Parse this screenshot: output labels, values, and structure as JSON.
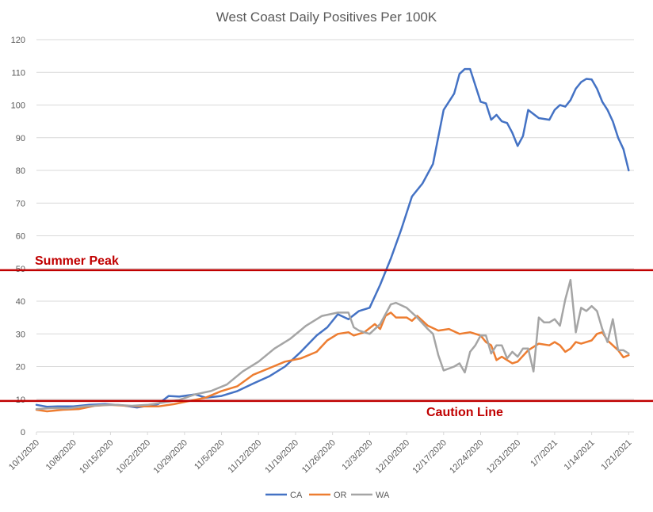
{
  "chart_data": {
    "type": "line",
    "title": "West Coast Daily Positives Per 100K",
    "xlabel": "",
    "ylabel": "",
    "ylim": [
      0,
      120
    ],
    "yticks": [
      0,
      10,
      20,
      30,
      40,
      50,
      60,
      70,
      80,
      90,
      100,
      110,
      120
    ],
    "grid": true,
    "legend_position": "bottom",
    "x_start": "10/1/2020",
    "x_end": "1/22/2021",
    "x_tick_labels": [
      "10/1/2020",
      "10/8/2020",
      "10/15/2020",
      "10/22/2020",
      "10/29/2020",
      "11/5/2020",
      "11/12/2020",
      "11/19/2020",
      "11/26/2020",
      "12/3/2020",
      "12/10/2020",
      "12/17/2020",
      "12/24/2020",
      "12/31/2020",
      "1/7/2021",
      "1/14/2021",
      "1/21/2021"
    ],
    "reference_lines": [
      {
        "label": "Summer Peak",
        "value": 49.5,
        "color": "#c00000"
      },
      {
        "label": "Caution Line",
        "value": 9.5,
        "color": "#c00000"
      }
    ],
    "series": [
      {
        "name": "CA",
        "color": "#4472c4",
        "points": [
          [
            "10/1/2020",
            8.3
          ],
          [
            "10/3/2020",
            7.7
          ],
          [
            "10/5/2020",
            7.8
          ],
          [
            "10/8/2020",
            7.8
          ],
          [
            "10/11/2020",
            8.3
          ],
          [
            "10/14/2020",
            8.5
          ],
          [
            "10/17/2020",
            8.2
          ],
          [
            "10/20/2020",
            7.5
          ],
          [
            "10/22/2020",
            8.0
          ],
          [
            "10/24/2020",
            8.5
          ],
          [
            "10/26/2020",
            11.0
          ],
          [
            "10/28/2020",
            10.8
          ],
          [
            "10/31/2020",
            11.5
          ],
          [
            "11/2/2020",
            10.5
          ],
          [
            "11/5/2020",
            11.0
          ],
          [
            "11/8/2020",
            12.5
          ],
          [
            "11/11/2020",
            14.8
          ],
          [
            "11/14/2020",
            17.0
          ],
          [
            "11/17/2020",
            20.0
          ],
          [
            "11/20/2020",
            24.5
          ],
          [
            "11/23/2020",
            29.5
          ],
          [
            "11/25/2020",
            32.0
          ],
          [
            "11/27/2020",
            36.0
          ],
          [
            "11/29/2020",
            34.5
          ],
          [
            "12/1/2020",
            37.0
          ],
          [
            "12/3/2020",
            38.0
          ],
          [
            "12/5/2020",
            45.0
          ],
          [
            "12/7/2020",
            53.0
          ],
          [
            "12/9/2020",
            62.0
          ],
          [
            "12/11/2020",
            72.0
          ],
          [
            "12/13/2020",
            76.0
          ],
          [
            "12/15/2020",
            82.0
          ],
          [
            "12/17/2020",
            98.5
          ],
          [
            "12/19/2020",
            103.5
          ],
          [
            "12/20/2020",
            109.5
          ],
          [
            "12/21/2020",
            111.0
          ],
          [
            "12/22/2020",
            111.0
          ],
          [
            "12/24/2020",
            101.0
          ],
          [
            "12/25/2020",
            100.5
          ],
          [
            "12/26/2020",
            95.5
          ],
          [
            "12/27/2020",
            97.0
          ],
          [
            "12/28/2020",
            95.0
          ],
          [
            "12/29/2020",
            94.5
          ],
          [
            "12/30/2020",
            91.5
          ],
          [
            "12/31/2020",
            87.5
          ],
          [
            "1/1/2021",
            90.5
          ],
          [
            "1/2/2021",
            98.5
          ],
          [
            "1/4/2021",
            96.0
          ],
          [
            "1/6/2021",
            95.5
          ],
          [
            "1/7/2021",
            98.5
          ],
          [
            "1/8/2021",
            100.0
          ],
          [
            "1/9/2021",
            99.5
          ],
          [
            "1/10/2021",
            101.5
          ],
          [
            "1/11/2021",
            105.0
          ],
          [
            "1/12/2021",
            107.0
          ],
          [
            "1/13/2021",
            108.0
          ],
          [
            "1/14/2021",
            107.8
          ],
          [
            "1/15/2021",
            105.0
          ],
          [
            "1/16/2021",
            101.0
          ],
          [
            "1/17/2021",
            98.5
          ],
          [
            "1/18/2021",
            95.0
          ],
          [
            "1/19/2021",
            90.0
          ],
          [
            "1/20/2021",
            86.5
          ],
          [
            "1/21/2021",
            80.0
          ]
        ]
      },
      {
        "name": "OR",
        "color": "#ed7d31",
        "points": [
          [
            "10/1/2020",
            6.8
          ],
          [
            "10/3/2020",
            6.3
          ],
          [
            "10/6/2020",
            6.8
          ],
          [
            "10/9/2020",
            7.0
          ],
          [
            "10/12/2020",
            8.0
          ],
          [
            "10/15/2020",
            8.3
          ],
          [
            "10/18/2020",
            8.0
          ],
          [
            "10/21/2020",
            7.8
          ],
          [
            "10/24/2020",
            7.8
          ],
          [
            "10/27/2020",
            8.5
          ],
          [
            "10/30/2020",
            9.5
          ],
          [
            "11/2/2020",
            10.5
          ],
          [
            "11/5/2020",
            12.5
          ],
          [
            "11/8/2020",
            14.0
          ],
          [
            "11/11/2020",
            17.5
          ],
          [
            "11/14/2020",
            19.5
          ],
          [
            "11/17/2020",
            21.5
          ],
          [
            "11/20/2020",
            22.5
          ],
          [
            "11/23/2020",
            24.5
          ],
          [
            "11/25/2020",
            28.0
          ],
          [
            "11/27/2020",
            30.0
          ],
          [
            "11/29/2020",
            30.5
          ],
          [
            "11/30/2020",
            29.5
          ],
          [
            "12/2/2020",
            30.5
          ],
          [
            "12/4/2020",
            33.0
          ],
          [
            "12/5/2020",
            31.5
          ],
          [
            "12/6/2020",
            35.5
          ],
          [
            "12/7/2020",
            36.5
          ],
          [
            "12/8/2020",
            35.0
          ],
          [
            "12/10/2020",
            35.0
          ],
          [
            "12/11/2020",
            34.0
          ],
          [
            "12/12/2020",
            35.5
          ],
          [
            "12/14/2020",
            32.5
          ],
          [
            "12/16/2020",
            31.0
          ],
          [
            "12/18/2020",
            31.5
          ],
          [
            "12/20/2020",
            30.0
          ],
          [
            "12/22/2020",
            30.5
          ],
          [
            "12/24/2020",
            29.5
          ],
          [
            "12/25/2020",
            27.5
          ],
          [
            "12/26/2020",
            26.5
          ],
          [
            "12/27/2020",
            22.0
          ],
          [
            "12/28/2020",
            23.0
          ],
          [
            "12/30/2020",
            21.0
          ],
          [
            "12/31/2020",
            21.5
          ],
          [
            "1/2/2021",
            25.0
          ],
          [
            "1/4/2021",
            27.0
          ],
          [
            "1/6/2021",
            26.5
          ],
          [
            "1/7/2021",
            27.5
          ],
          [
            "1/8/2021",
            26.5
          ],
          [
            "1/9/2021",
            24.5
          ],
          [
            "1/10/2021",
            25.5
          ],
          [
            "1/11/2021",
            27.5
          ],
          [
            "1/12/2021",
            27.0
          ],
          [
            "1/13/2021",
            27.5
          ],
          [
            "1/14/2021",
            28.0
          ],
          [
            "1/15/2021",
            30.0
          ],
          [
            "1/16/2021",
            30.5
          ],
          [
            "1/17/2021",
            28.0
          ],
          [
            "1/18/2021",
            26.5
          ],
          [
            "1/19/2021",
            25.0
          ],
          [
            "1/20/2021",
            22.8
          ],
          [
            "1/21/2021",
            23.5
          ]
        ]
      },
      {
        "name": "WA",
        "color": "#a5a5a5",
        "points": [
          [
            "10/1/2020",
            7.0
          ],
          [
            "10/4/2020",
            7.3
          ],
          [
            "10/7/2020",
            7.2
          ],
          [
            "10/10/2020",
            7.8
          ],
          [
            "10/13/2020",
            8.2
          ],
          [
            "10/16/2020",
            8.3
          ],
          [
            "10/19/2020",
            8.0
          ],
          [
            "10/22/2020",
            8.3
          ],
          [
            "10/25/2020",
            9.0
          ],
          [
            "10/28/2020",
            9.8
          ],
          [
            "10/31/2020",
            11.5
          ],
          [
            "11/3/2020",
            12.5
          ],
          [
            "11/6/2020",
            14.5
          ],
          [
            "11/9/2020",
            18.5
          ],
          [
            "11/12/2020",
            21.5
          ],
          [
            "11/15/2020",
            25.5
          ],
          [
            "11/18/2020",
            28.5
          ],
          [
            "11/21/2020",
            32.5
          ],
          [
            "11/24/2020",
            35.5
          ],
          [
            "11/27/2020",
            36.5
          ],
          [
            "11/29/2020",
            36.5
          ],
          [
            "11/30/2020",
            32.0
          ],
          [
            "12/1/2020",
            31.0
          ],
          [
            "12/3/2020",
            30.0
          ],
          [
            "12/5/2020",
            33.0
          ],
          [
            "12/7/2020",
            39.0
          ],
          [
            "12/8/2020",
            39.5
          ],
          [
            "12/10/2020",
            38.0
          ],
          [
            "12/12/2020",
            35.0
          ],
          [
            "12/14/2020",
            31.5
          ],
          [
            "12/15/2020",
            30.0
          ],
          [
            "12/16/2020",
            23.5
          ],
          [
            "12/17/2020",
            18.8
          ],
          [
            "12/19/2020",
            20.0
          ],
          [
            "12/20/2020",
            21.0
          ],
          [
            "12/21/2020",
            18.2
          ],
          [
            "12/22/2020",
            24.5
          ],
          [
            "12/23/2020",
            26.5
          ],
          [
            "12/24/2020",
            29.5
          ],
          [
            "12/25/2020",
            29.5
          ],
          [
            "12/26/2020",
            24.0
          ],
          [
            "12/27/2020",
            26.5
          ],
          [
            "12/28/2020",
            26.5
          ],
          [
            "12/29/2020",
            22.5
          ],
          [
            "12/30/2020",
            24.5
          ],
          [
            "12/31/2020",
            23.0
          ],
          [
            "1/1/2021",
            25.5
          ],
          [
            "1/2/2021",
            25.5
          ],
          [
            "1/3/2021",
            18.5
          ],
          [
            "1/4/2021",
            35.0
          ],
          [
            "1/5/2021",
            33.5
          ],
          [
            "1/6/2021",
            33.5
          ],
          [
            "1/7/2021",
            34.5
          ],
          [
            "1/8/2021",
            32.5
          ],
          [
            "1/9/2021",
            40.5
          ],
          [
            "1/10/2021",
            46.5
          ],
          [
            "1/11/2021",
            30.5
          ],
          [
            "1/12/2021",
            38.0
          ],
          [
            "1/13/2021",
            37.0
          ],
          [
            "1/14/2021",
            38.5
          ],
          [
            "1/15/2021",
            37.0
          ],
          [
            "1/16/2021",
            31.5
          ],
          [
            "1/17/2021",
            27.5
          ],
          [
            "1/18/2021",
            34.5
          ],
          [
            "1/19/2021",
            25.0
          ],
          [
            "1/20/2021",
            25.0
          ],
          [
            "1/21/2021",
            24.0
          ]
        ]
      }
    ]
  }
}
